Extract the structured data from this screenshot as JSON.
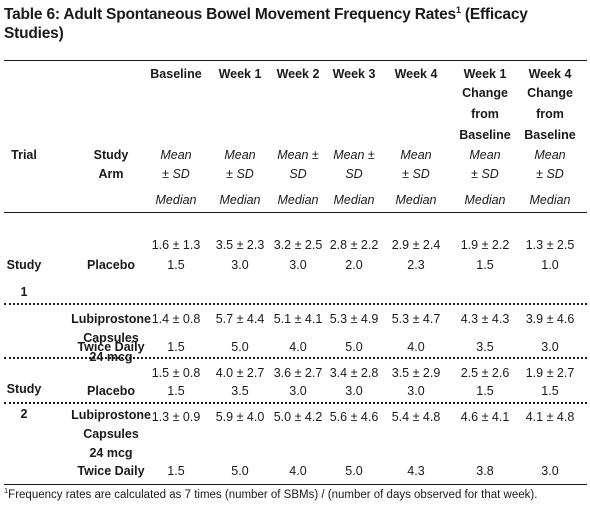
{
  "title": "Table 6: Adult Spontaneous Bowel Movement Frequency Rates",
  "title_sup": "1",
  "title_rest": " (Efficacy Studies)",
  "header": {
    "columns": [
      "Baseline",
      "Week 1",
      "Week 2",
      "Week 3",
      "Week 4",
      "Week 1",
      "Week 4"
    ],
    "change": [
      "Change",
      "from",
      "Baseline"
    ],
    "trial": "Trial",
    "study_arm": [
      "Study",
      "Arm"
    ],
    "stats": {
      "baseline": [
        "Mean",
        "± SD"
      ],
      "week1": [
        "Mean",
        "± SD"
      ],
      "week2": [
        "Mean ±",
        "SD"
      ],
      "week3": [
        "Mean ±",
        "SD"
      ],
      "week4": [
        "Mean",
        "± SD"
      ],
      "change1": [
        "Mean",
        "± SD"
      ],
      "change4": [
        "Mean",
        "± SD"
      ]
    },
    "median": "Median"
  },
  "studies": [
    {
      "label": [
        "Study",
        "1"
      ],
      "arms": [
        {
          "name": [
            "Placebo"
          ],
          "means": [
            "1.6 ± 1.3",
            "3.5 ± 2.3",
            "3.2 ± 2.5",
            "2.8 ± 2.2",
            "2.9 ± 2.4",
            "1.9 ± 2.2",
            "1.3 ± 2.5"
          ],
          "medians": [
            "1.5",
            "3.0",
            "3.0",
            "2.0",
            "2.3",
            "1.5",
            "1.0"
          ]
        },
        {
          "name": [
            "Lubiprostone",
            "Capsules",
            "24 mcg",
            "Twice Daily"
          ],
          "means": [
            "1.4 ± 0.8",
            "5.7 ± 4.4",
            "5.1 ± 4.1",
            "5.3 ± 4.9",
            "5.3 ± 4.7",
            "4.3 ± 4.3",
            "3.9 ± 4.6"
          ],
          "medians": [
            "1.5",
            "5.0",
            "4.0",
            "5.0",
            "4.0",
            "3.5",
            "3.0"
          ]
        }
      ]
    },
    {
      "label": [
        "Study",
        "2"
      ],
      "arms": [
        {
          "name": [
            "Placebo"
          ],
          "means": [
            "1.5 ± 0.8",
            "4.0 ± 2.7",
            "3.6 ± 2.7",
            "3.4 ± 2.8",
            "3.5 ± 2.9",
            "2.5 ± 2.6",
            "1.9 ± 2.7"
          ],
          "medians": [
            "1.5",
            "3.5",
            "3.0",
            "3.0",
            "3.0",
            "1.5",
            "1.5"
          ]
        },
        {
          "name": [
            "Lubiprostone",
            "Capsules",
            "24 mcg",
            "Twice Daily"
          ],
          "means": [
            "1.3 ± 0.9",
            "5.9 ± 4.0",
            "5.0 ± 4.2",
            "5.6 ± 4.6",
            "5.4 ± 4.8",
            "4.6 ± 4.1",
            "4.1 ± 4.8"
          ],
          "medians": [
            "1.5",
            "5.0",
            "4.0",
            "5.0",
            "4.3",
            "3.8",
            "3.0"
          ]
        }
      ]
    }
  ],
  "footnote_sup": "1",
  "footnote": "Frequency rates are calculated as 7 times (number of SBMs) / (number of days observed for that week)."
}
